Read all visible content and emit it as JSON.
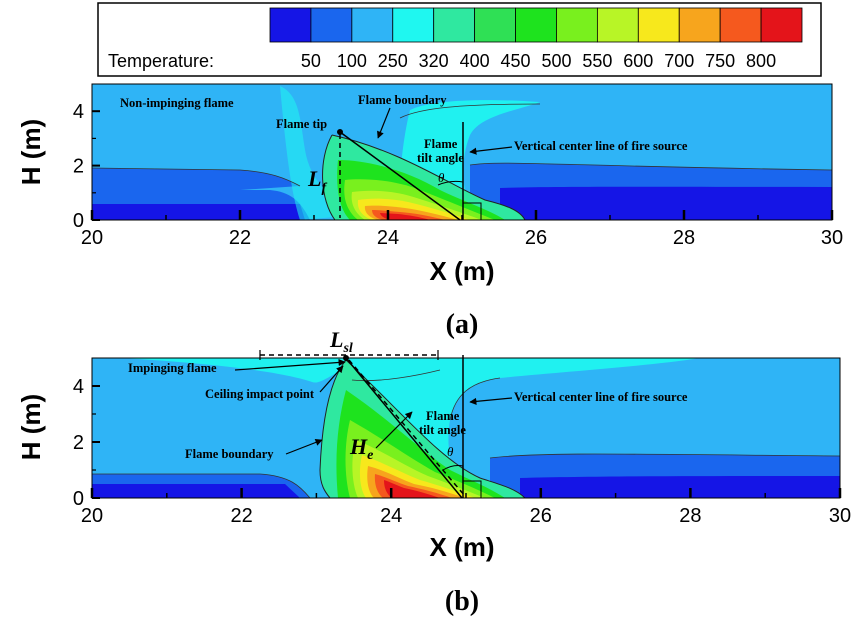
{
  "legend": {
    "title": "Temperature:",
    "levels": [
      "50",
      "100",
      "250",
      "320",
      "400",
      "450",
      "500",
      "550",
      "600",
      "700",
      "750",
      "800"
    ],
    "colors": [
      "#1515e6",
      "#1a66ee",
      "#2fb4f6",
      "#1ff7f0",
      "#2fe8a0",
      "#2fe055",
      "#1ee31e",
      "#79f01e",
      "#b8f526",
      "#f7e81c",
      "#f7a51d",
      "#f5591e",
      "#e4141a"
    ]
  },
  "chart_data": [
    {
      "type": "contour",
      "panel": "(a)",
      "xlabel": "X (m)",
      "ylabel": "H (m)",
      "xlim": [
        20,
        30
      ],
      "ylim": [
        0,
        5
      ],
      "xticks": [
        "20",
        "22",
        "24",
        "26",
        "28",
        "30"
      ],
      "yticks": [
        "0",
        "2",
        "4"
      ],
      "annotations": [
        "Non-impinging flame",
        "Flame boundary",
        "Flame tip",
        "Flame",
        "tilt angle",
        "Vertical center line of fire source"
      ],
      "symbols": {
        "length": "L",
        "length_sub": "f",
        "angle": "θ"
      },
      "flame_tip": {
        "x": 23.35,
        "y": 3.2
      },
      "fire_source_x": 25.0
    },
    {
      "type": "contour",
      "panel": "(b)",
      "xlabel": "X (m)",
      "ylabel": "H (m)",
      "xlim": [
        20,
        30
      ],
      "ylim": [
        0,
        5
      ],
      "xticks": [
        "20",
        "22",
        "24",
        "26",
        "28",
        "30"
      ],
      "yticks": [
        "0",
        "2",
        "4"
      ],
      "annotations": [
        "Impinging flame",
        "Ceiling impact point",
        "Flame boundary",
        "Flame",
        "tilt angle",
        "Vertical center line of fire source"
      ],
      "symbols": {
        "length": "L",
        "length_sub": "sl",
        "height": "H",
        "height_sub": "e",
        "angle": "θ"
      },
      "ceiling_impact": {
        "x": 23.45,
        "y": 5.0
      },
      "fire_source_x": 25.0
    }
  ]
}
